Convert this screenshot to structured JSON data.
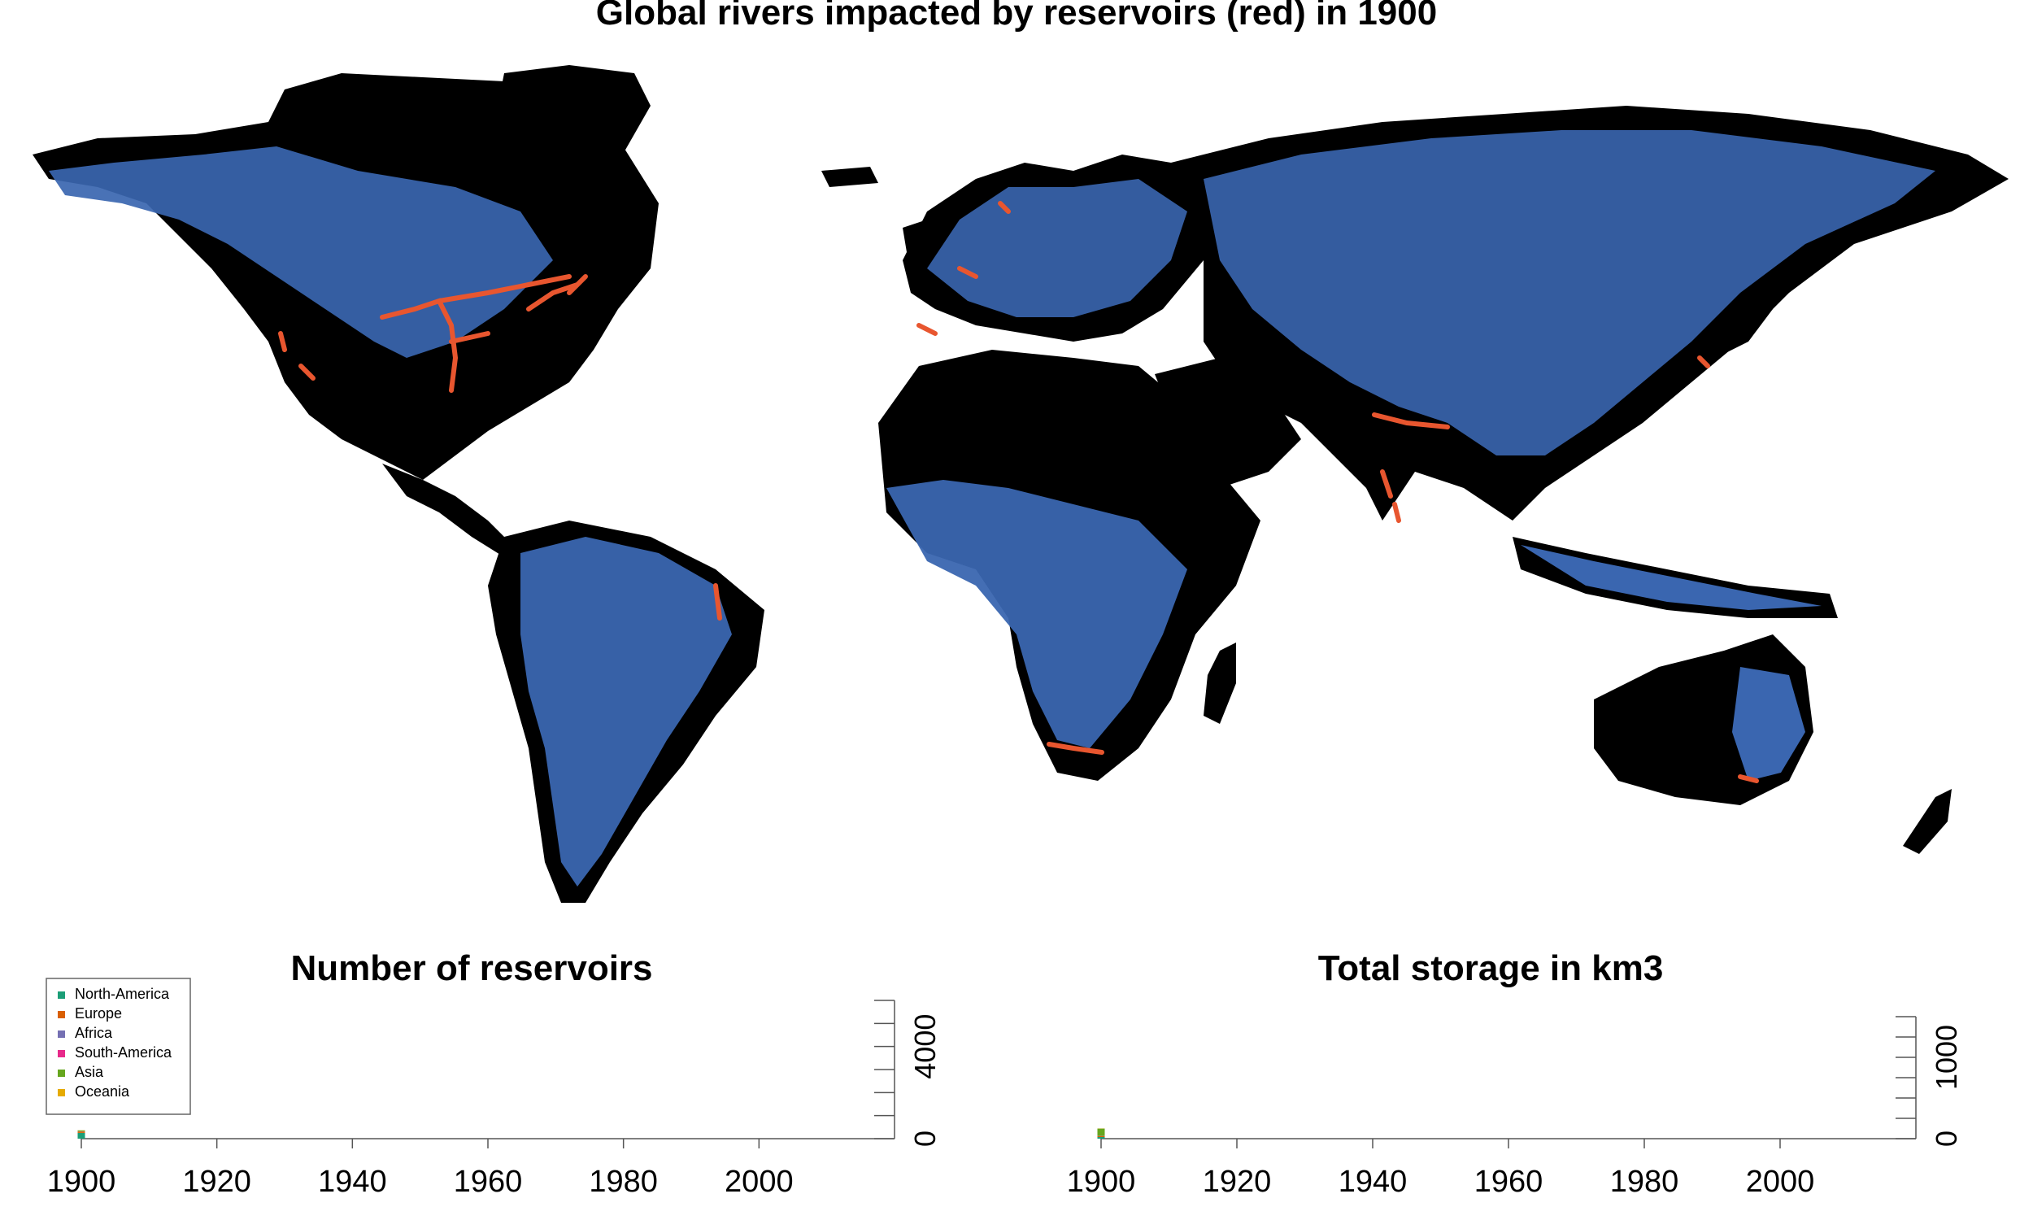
{
  "map": {
    "title": "Global rivers impacted by reservoirs (red) in 1900",
    "colors": {
      "land": "#000000",
      "river": "#3a66b0",
      "impacted": "#e8562f"
    }
  },
  "chart_data": [
    {
      "type": "bar",
      "title": "Number of reservoirs",
      "xlabel": "",
      "ylabel": "",
      "x_ticks": [
        1900,
        1920,
        1940,
        1960,
        1980,
        2000
      ],
      "xlim": [
        1900,
        2020
      ],
      "ylim": [
        0,
        6000
      ],
      "y_ticks_labeled": [
        0,
        4000
      ],
      "y_axis_side": "right",
      "legend_position": "top-left",
      "categories": [
        1900
      ],
      "series": [
        {
          "name": "North-America",
          "color": "#1b9e77",
          "values": [
            250
          ]
        },
        {
          "name": "Europe",
          "color": "#d95f02",
          "values": [
            60
          ]
        },
        {
          "name": "Africa",
          "color": "#7570b3",
          "values": [
            5
          ]
        },
        {
          "name": "South-America",
          "color": "#e7298a",
          "values": [
            5
          ]
        },
        {
          "name": "Asia",
          "color": "#66a61e",
          "values": [
            40
          ]
        },
        {
          "name": "Oceania",
          "color": "#e6ab02",
          "values": [
            5
          ]
        }
      ]
    },
    {
      "type": "bar",
      "title": "Total storage in km3",
      "xlabel": "",
      "ylabel": "",
      "x_ticks": [
        1900,
        1920,
        1940,
        1960,
        1980,
        2000
      ],
      "xlim": [
        1900,
        2020
      ],
      "ylim": [
        0,
        1500
      ],
      "y_ticks_labeled": [
        0,
        1000
      ],
      "y_axis_side": "right",
      "categories": [
        1900
      ],
      "series": [
        {
          "name": "North-America",
          "color": "#1b9e77",
          "values": [
            20
          ]
        },
        {
          "name": "Europe",
          "color": "#d95f02",
          "values": [
            10
          ]
        },
        {
          "name": "Africa",
          "color": "#7570b3",
          "values": [
            2
          ]
        },
        {
          "name": "South-America",
          "color": "#e7298a",
          "values": [
            2
          ]
        },
        {
          "name": "Asia",
          "color": "#66a61e",
          "values": [
            90
          ]
        },
        {
          "name": "Oceania",
          "color": "#e6ab02",
          "values": [
            2
          ]
        }
      ]
    }
  ]
}
